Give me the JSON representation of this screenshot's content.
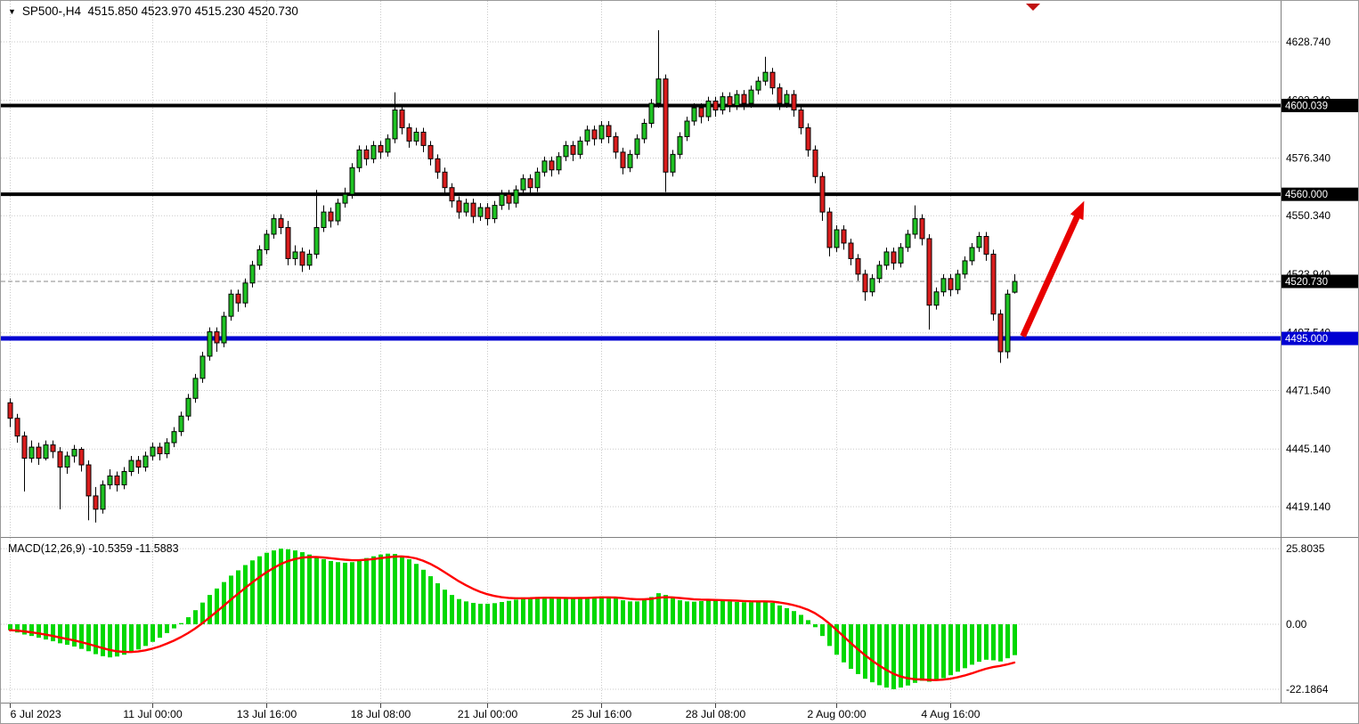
{
  "header": {
    "title_text": "SP500-,H4  4515.850 4523.970 4515.230 4520.730",
    "symbol": "SP500-",
    "timeframe": "H4",
    "open": "4515.850",
    "high": "4523.970",
    "low": "4515.230",
    "close": "4520.730"
  },
  "indicator": {
    "label": "MACD(12,26,9) -10.5359 -11.5883",
    "name": "MACD(12,26,9)",
    "macd_value": "-10.5359",
    "signal_value": "-11.5883"
  },
  "colors": {
    "bull": "#1fc223",
    "bear": "#d91d1d",
    "wick": "#000000",
    "histogram": "#00d800",
    "signal": "#ff0000",
    "hline_black": "#000000",
    "hline_blue": "#0000d2",
    "badge_black_bg": "#000000",
    "badge_blue_bg": "#0000d2",
    "arrow": "#e80000",
    "grid": "#c9c9c9",
    "current_price_line": "#8a8a8a",
    "shift_marker": "#c01010"
  },
  "chart_data": {
    "type": "candlestick",
    "title": "SP500- H4 with MACD(12,26,9)",
    "price_axis_labels": [
      {
        "text": "4628.740",
        "price": 4628.74
      },
      {
        "text": "4602.340",
        "price": 4602.34
      },
      {
        "text": "4576.340",
        "price": 4576.34
      },
      {
        "text": "4550.340",
        "price": 4550.34
      },
      {
        "text": "4523.940",
        "price": 4523.94
      },
      {
        "text": "4497.540",
        "price": 4497.54
      },
      {
        "text": "4471.540",
        "price": 4471.54
      },
      {
        "text": "4445.140",
        "price": 4445.14
      },
      {
        "text": "4419.140",
        "price": 4419.14
      }
    ],
    "hlines": [
      {
        "label": "4600.039",
        "price": 4600.039,
        "color": "#000000",
        "width": 4,
        "badge_bg": "#000000"
      },
      {
        "label": "4560.000",
        "price": 4560.0,
        "color": "#000000",
        "width": 4,
        "badge_bg": "#000000"
      },
      {
        "label": "4495.000",
        "price": 4495.0,
        "color": "#0000d2",
        "width": 5,
        "badge_bg": "#0000d2"
      }
    ],
    "current_price": {
      "label": "4520.730",
      "price": 4520.73,
      "badge_bg": "#000000"
    },
    "time_labels": [
      {
        "text": "6 Jul 2023",
        "bar": 0
      },
      {
        "text": "11 Jul 00:00",
        "bar": 20
      },
      {
        "text": "13 Jul 16:00",
        "bar": 36
      },
      {
        "text": "18 Jul 08:00",
        "bar": 52
      },
      {
        "text": "21 Jul 00:00",
        "bar": 67
      },
      {
        "text": "25 Jul 16:00",
        "bar": 83
      },
      {
        "text": "28 Jul 08:00",
        "bar": 99
      },
      {
        "text": "2 Aug 00:00",
        "bar": 116
      },
      {
        "text": "4 Aug 16:00",
        "bar": 132
      }
    ],
    "candles": [
      [
        4466,
        4468,
        4455,
        4459
      ],
      [
        4459,
        4461,
        4448,
        4451
      ],
      [
        4451,
        4453,
        4426,
        4441
      ],
      [
        4441,
        4449,
        4439,
        4446
      ],
      [
        4446,
        4448,
        4438,
        4441
      ],
      [
        4441,
        4449,
        4440,
        4447
      ],
      [
        4447,
        4449,
        4441,
        4444
      ],
      [
        4444,
        4446,
        4418,
        4437
      ],
      [
        4437,
        4444,
        4434,
        4442
      ],
      [
        4442,
        4447,
        4439,
        4445
      ],
      [
        4445,
        4446,
        4435,
        4438
      ],
      [
        4438,
        4440,
        4413,
        4424
      ],
      [
        4424,
        4428,
        4412,
        4418
      ],
      [
        4418,
        4431,
        4416,
        4429
      ],
      [
        4429,
        4436,
        4427,
        4433
      ],
      [
        4433,
        4435,
        4426,
        4429
      ],
      [
        4429,
        4437,
        4427,
        4435
      ],
      [
        4435,
        4442,
        4433,
        4440
      ],
      [
        4440,
        4442,
        4434,
        4437
      ],
      [
        4437,
        4444,
        4435,
        4442
      ],
      [
        4442,
        4448,
        4440,
        4446
      ],
      [
        4446,
        4448,
        4440,
        4443
      ],
      [
        4443,
        4450,
        4441,
        4448
      ],
      [
        4448,
        4455,
        4446,
        4453
      ],
      [
        4453,
        4462,
        4451,
        4460
      ],
      [
        4460,
        4470,
        4458,
        4468
      ],
      [
        4468,
        4479,
        4466,
        4477
      ],
      [
        4477,
        4489,
        4475,
        4487
      ],
      [
        4487,
        4500,
        4485,
        4498
      ],
      [
        4498,
        4500,
        4489,
        4493
      ],
      [
        4493,
        4507,
        4491,
        4505
      ],
      [
        4505,
        4517,
        4503,
        4515
      ],
      [
        4515,
        4517,
        4507,
        4511
      ],
      [
        4511,
        4522,
        4509,
        4520
      ],
      [
        4520,
        4530,
        4518,
        4528
      ],
      [
        4528,
        4537,
        4526,
        4535
      ],
      [
        4535,
        4544,
        4533,
        4542
      ],
      [
        4542,
        4551,
        4540,
        4549
      ],
      [
        4549,
        4551,
        4542,
        4545
      ],
      [
        4545,
        4548,
        4528,
        4531
      ],
      [
        4531,
        4537,
        4528,
        4534
      ],
      [
        4534,
        4536,
        4525,
        4528
      ],
      [
        4528,
        4535,
        4526,
        4533
      ],
      [
        4533,
        4562,
        4531,
        4545
      ],
      [
        4545,
        4555,
        4543,
        4552
      ],
      [
        4552,
        4554,
        4545,
        4548
      ],
      [
        4548,
        4558,
        4546,
        4556
      ],
      [
        4556,
        4563,
        4554,
        4560
      ],
      [
        4560,
        4574,
        4558,
        4572
      ],
      [
        4572,
        4582,
        4570,
        4580
      ],
      [
        4580,
        4582,
        4573,
        4576
      ],
      [
        4576,
        4584,
        4574,
        4582
      ],
      [
        4582,
        4584,
        4576,
        4579
      ],
      [
        4579,
        4587,
        4577,
        4585
      ],
      [
        4585,
        4606,
        4583,
        4598
      ],
      [
        4598,
        4600,
        4587,
        4590
      ],
      [
        4590,
        4592,
        4581,
        4584
      ],
      [
        4584,
        4590,
        4582,
        4588
      ],
      [
        4588,
        4590,
        4579,
        4582
      ],
      [
        4582,
        4584,
        4573,
        4576
      ],
      [
        4576,
        4578,
        4567,
        4570
      ],
      [
        4570,
        4572,
        4560,
        4563
      ],
      [
        4563,
        4565,
        4554,
        4557
      ],
      [
        4557,
        4559,
        4549,
        4552
      ],
      [
        4552,
        4558,
        4550,
        4556
      ],
      [
        4556,
        4558,
        4547,
        4550
      ],
      [
        4550,
        4556,
        4548,
        4554
      ],
      [
        4554,
        4556,
        4546,
        4549
      ],
      [
        4549,
        4557,
        4547,
        4555
      ],
      [
        4555,
        4562,
        4553,
        4560
      ],
      [
        4560,
        4562,
        4553,
        4556
      ],
      [
        4556,
        4564,
        4554,
        4562
      ],
      [
        4562,
        4569,
        4560,
        4567
      ],
      [
        4567,
        4569,
        4560,
        4563
      ],
      [
        4563,
        4572,
        4561,
        4570
      ],
      [
        4570,
        4577,
        4568,
        4575
      ],
      [
        4575,
        4577,
        4568,
        4571
      ],
      [
        4571,
        4579,
        4569,
        4577
      ],
      [
        4577,
        4584,
        4575,
        4582
      ],
      [
        4582,
        4584,
        4575,
        4578
      ],
      [
        4578,
        4586,
        4576,
        4584
      ],
      [
        4584,
        4591,
        4582,
        4589
      ],
      [
        4589,
        4591,
        4582,
        4585
      ],
      [
        4585,
        4593,
        4583,
        4591
      ],
      [
        4591,
        4593,
        4583,
        4586
      ],
      [
        4586,
        4588,
        4576,
        4579
      ],
      [
        4579,
        4581,
        4569,
        4572
      ],
      [
        4572,
        4580,
        4570,
        4578
      ],
      [
        4578,
        4587,
        4576,
        4585
      ],
      [
        4585,
        4594,
        4583,
        4592
      ],
      [
        4592,
        4603,
        4590,
        4601
      ],
      [
        4601,
        4634,
        4599,
        4612
      ],
      [
        4612,
        4614,
        4561,
        4570
      ],
      [
        4570,
        4580,
        4568,
        4578
      ],
      [
        4578,
        4588,
        4576,
        4586
      ],
      [
        4586,
        4595,
        4584,
        4593
      ],
      [
        4593,
        4601,
        4591,
        4599
      ],
      [
        4599,
        4601,
        4592,
        4595
      ],
      [
        4595,
        4604,
        4593,
        4602
      ],
      [
        4602,
        4604,
        4595,
        4598
      ],
      [
        4598,
        4606,
        4596,
        4604
      ],
      [
        4604,
        4606,
        4597,
        4600
      ],
      [
        4600,
        4607,
        4598,
        4605
      ],
      [
        4605,
        4607,
        4598,
        4601
      ],
      [
        4601,
        4609,
        4599,
        4607
      ],
      [
        4607,
        4613,
        4605,
        4611
      ],
      [
        4611,
        4622,
        4609,
        4615
      ],
      [
        4615,
        4617,
        4605,
        4608
      ],
      [
        4608,
        4610,
        4598,
        4601
      ],
      [
        4601,
        4607,
        4599,
        4605
      ],
      [
        4605,
        4607,
        4595,
        4598
      ],
      [
        4598,
        4600,
        4587,
        4590
      ],
      [
        4590,
        4592,
        4577,
        4580
      ],
      [
        4580,
        4582,
        4565,
        4568
      ],
      [
        4568,
        4570,
        4548,
        4552
      ],
      [
        4552,
        4554,
        4532,
        4536
      ],
      [
        4536,
        4546,
        4534,
        4544
      ],
      [
        4544,
        4546,
        4535,
        4538
      ],
      [
        4538,
        4540,
        4528,
        4531
      ],
      [
        4531,
        4533,
        4521,
        4524
      ],
      [
        4524,
        4526,
        4512,
        4516
      ],
      [
        4516,
        4524,
        4514,
        4522
      ],
      [
        4522,
        4530,
        4520,
        4528
      ],
      [
        4528,
        4536,
        4526,
        4534
      ],
      [
        4534,
        4536,
        4526,
        4529
      ],
      [
        4529,
        4538,
        4527,
        4536
      ],
      [
        4536,
        4544,
        4534,
        4542
      ],
      [
        4542,
        4555,
        4540,
        4549
      ],
      [
        4549,
        4551,
        4537,
        4540
      ],
      [
        4540,
        4542,
        4499,
        4510
      ],
      [
        4510,
        4518,
        4508,
        4516
      ],
      [
        4516,
        4524,
        4514,
        4522
      ],
      [
        4522,
        4524,
        4514,
        4517
      ],
      [
        4517,
        4526,
        4515,
        4524
      ],
      [
        4524,
        4532,
        4522,
        4530
      ],
      [
        4530,
        4538,
        4528,
        4536
      ],
      [
        4536,
        4543,
        4534,
        4541
      ],
      [
        4541,
        4543,
        4530,
        4533
      ],
      [
        4533,
        4535,
        4503,
        4506
      ],
      [
        4506,
        4508,
        4484,
        4489
      ],
      [
        4489,
        4517,
        4486,
        4515
      ],
      [
        4515.85,
        4523.97,
        4515.23,
        4520.73
      ]
    ],
    "macd": {
      "signal_period": 9,
      "axis_labels": [
        {
          "text": "25.8035",
          "value": 25.8035
        },
        {
          "text": "0.00",
          "value": 0
        },
        {
          "text": "-22.1864",
          "value": -22.1864
        }
      ],
      "values": [
        -2.0,
        -2.8,
        -3.5,
        -4.0,
        -4.6,
        -5.2,
        -5.8,
        -6.5,
        -7.0,
        -7.6,
        -8.4,
        -9.2,
        -10.2,
        -10.9,
        -11.3,
        -11.0,
        -10.4,
        -9.6,
        -8.6,
        -7.4,
        -6.0,
        -4.6,
        -3.0,
        -1.4,
        0.4,
        2.4,
        4.8,
        7.4,
        10.0,
        12.2,
        14.4,
        16.6,
        18.4,
        20.2,
        21.8,
        23.2,
        24.4,
        25.2,
        25.8035,
        25.6,
        25.2,
        24.6,
        23.8,
        23.0,
        22.2,
        21.6,
        21.2,
        21.0,
        21.2,
        21.8,
        22.6,
        23.2,
        23.8,
        24.1,
        24.0,
        23.4,
        22.2,
        20.6,
        18.6,
        16.4,
        14.0,
        11.8,
        10.0,
        8.6,
        7.8,
        7.3,
        7.0,
        7.0,
        7.2,
        7.6,
        8.0,
        8.4,
        8.8,
        9.1,
        9.3,
        9.3,
        9.1,
        8.9,
        8.8,
        8.8,
        9.0,
        9.2,
        9.4,
        9.5,
        9.3,
        8.8,
        8.2,
        7.8,
        7.8,
        8.4,
        9.3,
        10.6,
        10.0,
        8.9,
        8.2,
        7.8,
        7.7,
        7.9,
        8.1,
        8.1,
        8.0,
        7.8,
        7.6,
        7.5,
        7.5,
        7.7,
        7.8,
        7.3,
        6.4,
        5.5,
        4.5,
        3.2,
        1.4,
        -1.0,
        -4.0,
        -7.4,
        -10.4,
        -13.0,
        -15.2,
        -17.0,
        -18.6,
        -19.8,
        -20.8,
        -21.6,
        -22.1864,
        -21.6,
        -20.9,
        -20.0,
        -19.3,
        -19.6,
        -19.2,
        -18.4,
        -17.4,
        -16.2,
        -15.0,
        -13.8,
        -12.8,
        -12.1,
        -12.3,
        -12.7,
        -11.6,
        -10.5359
      ]
    },
    "annotations": {
      "arrow": {
        "from": {
          "bar": 142.2,
          "price": 4496
        },
        "to": {
          "bar": 150.8,
          "price": 4557
        },
        "direction": "up-right"
      }
    }
  }
}
